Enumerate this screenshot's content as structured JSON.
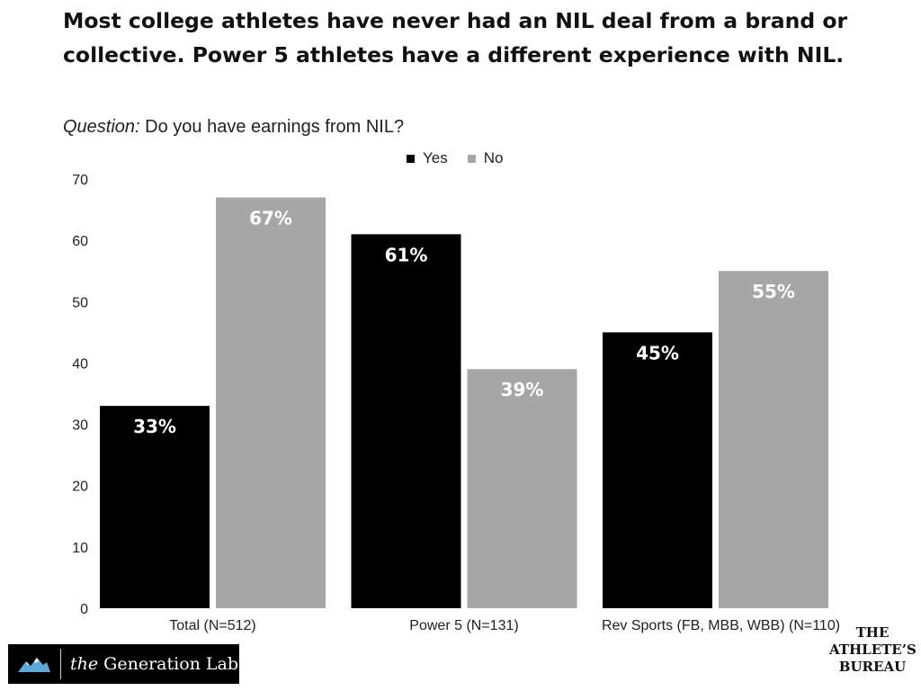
{
  "title": "Most college athletes have never had an NIL deal from a brand or collective.  Power 5 athletes have a different experience with NIL.",
  "question_prefix": "Question:",
  "question_text": " Do you have earnings from NIL?",
  "colors": {
    "yes": "#000000",
    "no": "#a6a6a6"
  },
  "chart_data": {
    "type": "bar",
    "title": "Most college athletes have never had an NIL deal from a brand or collective.  Power 5 athletes have a different experience with NIL.",
    "categories": [
      "Total (N=512)",
      "Power 5 (N=131)",
      "Rev Sports (FB, MBB, WBB) (N=110)"
    ],
    "series": [
      {
        "name": "Yes",
        "values": [
          33,
          61,
          45
        ],
        "labels": [
          "33%",
          "61%",
          "45%"
        ]
      },
      {
        "name": "No",
        "values": [
          67,
          39,
          55
        ],
        "labels": [
          "67%",
          "39%",
          "55%"
        ]
      }
    ],
    "ylim": [
      0,
      70
    ],
    "yticks": [
      "0",
      "10",
      "20",
      "30",
      "40",
      "50",
      "60",
      "70"
    ],
    "xlabel": "",
    "ylabel": "",
    "grid": false,
    "legend_position": "top-center"
  },
  "logos": {
    "left_prefix": "the",
    "left_name": " Generation Lab",
    "right_line1": "THE",
    "right_line2": "ATHLETE’S",
    "right_line3": "BUREAU"
  }
}
